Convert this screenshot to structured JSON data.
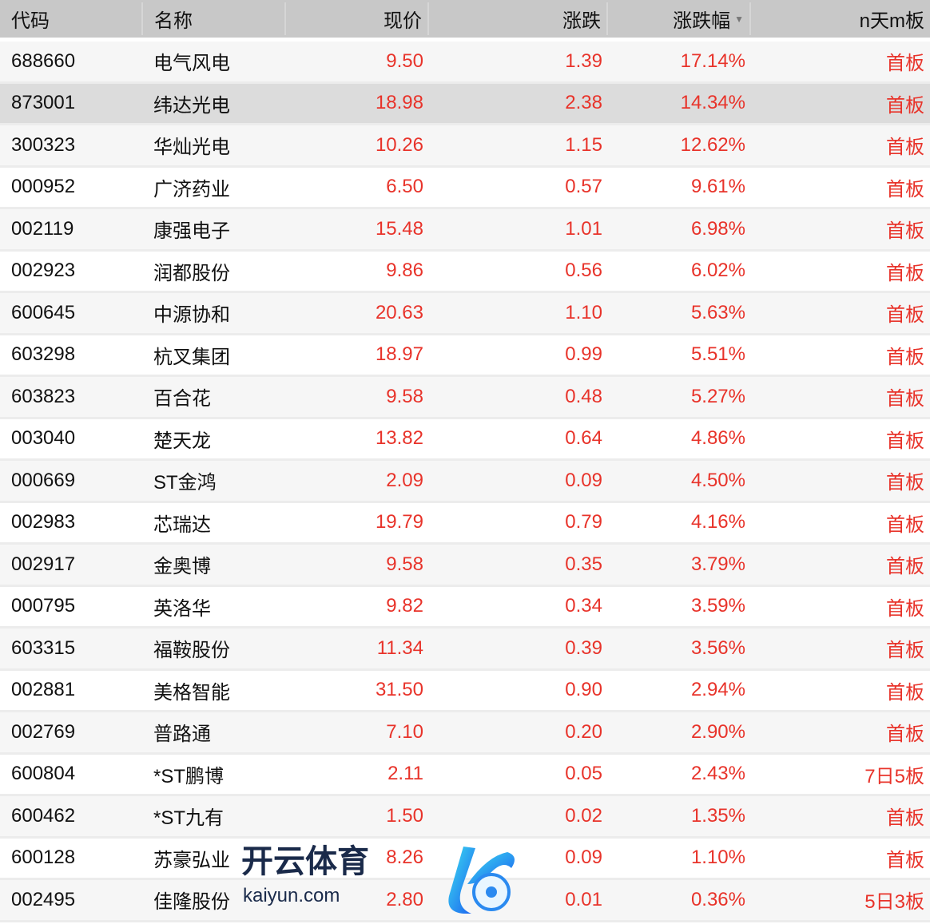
{
  "header": {
    "code": "代码",
    "name": "名称",
    "price": "现价",
    "change": "涨跌",
    "pct": "涨跌幅",
    "sort_icon": "triangle-down",
    "board": "n天m板"
  },
  "colors": {
    "up": "#e8332a",
    "header_bg": "#c8c8c8",
    "selected_bg": "#dcdcdc"
  },
  "selected_row": 1,
  "rows": [
    {
      "code": "688660",
      "name": "电气风电",
      "price": "9.50",
      "change": "1.39",
      "pct": "17.14%",
      "board": "首板"
    },
    {
      "code": "873001",
      "name": "纬达光电",
      "price": "18.98",
      "change": "2.38",
      "pct": "14.34%",
      "board": "首板"
    },
    {
      "code": "300323",
      "name": "华灿光电",
      "price": "10.26",
      "change": "1.15",
      "pct": "12.62%",
      "board": "首板"
    },
    {
      "code": "000952",
      "name": "广济药业",
      "price": "6.50",
      "change": "0.57",
      "pct": "9.61%",
      "board": "首板"
    },
    {
      "code": "002119",
      "name": "康强电子",
      "price": "15.48",
      "change": "1.01",
      "pct": "6.98%",
      "board": "首板"
    },
    {
      "code": "002923",
      "name": "润都股份",
      "price": "9.86",
      "change": "0.56",
      "pct": "6.02%",
      "board": "首板"
    },
    {
      "code": "600645",
      "name": "中源协和",
      "price": "20.63",
      "change": "1.10",
      "pct": "5.63%",
      "board": "首板"
    },
    {
      "code": "603298",
      "name": "杭叉集团",
      "price": "18.97",
      "change": "0.99",
      "pct": "5.51%",
      "board": "首板"
    },
    {
      "code": "603823",
      "name": "百合花",
      "price": "9.58",
      "change": "0.48",
      "pct": "5.27%",
      "board": "首板"
    },
    {
      "code": "003040",
      "name": "楚天龙",
      "price": "13.82",
      "change": "0.64",
      "pct": "4.86%",
      "board": "首板"
    },
    {
      "code": "000669",
      "name": "ST金鸿",
      "price": "2.09",
      "change": "0.09",
      "pct": "4.50%",
      "board": "首板"
    },
    {
      "code": "002983",
      "name": "芯瑞达",
      "price": "19.79",
      "change": "0.79",
      "pct": "4.16%",
      "board": "首板"
    },
    {
      "code": "002917",
      "name": "金奥博",
      "price": "9.58",
      "change": "0.35",
      "pct": "3.79%",
      "board": "首板"
    },
    {
      "code": "000795",
      "name": "英洛华",
      "price": "9.82",
      "change": "0.34",
      "pct": "3.59%",
      "board": "首板"
    },
    {
      "code": "603315",
      "name": "福鞍股份",
      "price": "11.34",
      "change": "0.39",
      "pct": "3.56%",
      "board": "首板"
    },
    {
      "code": "002881",
      "name": "美格智能",
      "price": "31.50",
      "change": "0.90",
      "pct": "2.94%",
      "board": "首板"
    },
    {
      "code": "002769",
      "name": "普路通",
      "price": "7.10",
      "change": "0.20",
      "pct": "2.90%",
      "board": "首板"
    },
    {
      "code": "600804",
      "name": "*ST鹏博",
      "price": "2.11",
      "change": "0.05",
      "pct": "2.43%",
      "board": "7日5板"
    },
    {
      "code": "600462",
      "name": "*ST九有",
      "price": "1.50",
      "change": "0.02",
      "pct": "1.35%",
      "board": "首板"
    },
    {
      "code": "600128",
      "name": "苏豪弘业",
      "price": "8.26",
      "change": "0.09",
      "pct": "1.10%",
      "board": "首板"
    },
    {
      "code": "002495",
      "name": "佳隆股份",
      "price": "2.80",
      "change": "0.01",
      "pct": "0.36%",
      "board": "5日3板"
    }
  ],
  "watermark": {
    "cn": "开云体育",
    "en": "kaiyun.com"
  }
}
